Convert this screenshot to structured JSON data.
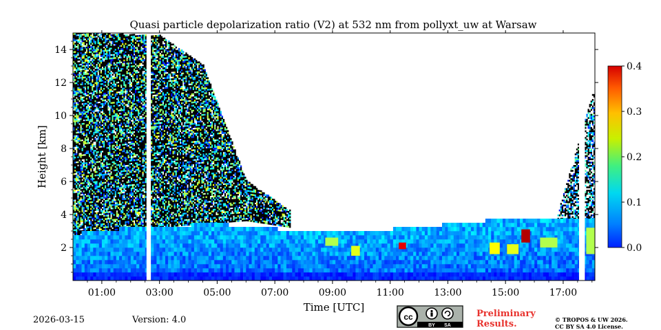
{
  "chart_data": {
    "type": "heatmap",
    "title": "Quasi particle depolarization ratio (V2) at 532 nm from pollyxt_uw at Warsaw",
    "xlabel": "Time [UTC]",
    "ylabel": "Height [km]",
    "xlim": [
      0.0,
      18.1
    ],
    "ylim": [
      0.0,
      15.0
    ],
    "xticks": [
      1,
      3,
      5,
      7,
      9,
      11,
      13,
      15,
      17
    ],
    "xtick_labels": [
      "01:00",
      "03:00",
      "05:00",
      "07:00",
      "09:00",
      "11:00",
      "13:00",
      "15:00",
      "17:00"
    ],
    "yticks": [
      2,
      4,
      6,
      8,
      10,
      12,
      14
    ],
    "ytick_labels": [
      "2",
      "4",
      "6",
      "8",
      "10",
      "12",
      "14"
    ],
    "colorbar": {
      "range": [
        0.0,
        0.4
      ],
      "ticks": [
        0.0,
        0.1,
        0.2,
        0.3,
        0.4
      ],
      "tick_labels": [
        "0.0",
        "0.1",
        "0.2",
        "0.3",
        "0.4"
      ],
      "colormap": "jet"
    },
    "missing_data_gaps_hours": [
      [
        2.55,
        2.7
      ],
      [
        17.55,
        17.75
      ]
    ],
    "boundary_layer_top_km": [
      [
        0.0,
        2.7
      ],
      [
        1.0,
        2.9
      ],
      [
        2.0,
        3.1
      ],
      [
        3.0,
        3.2
      ],
      [
        5.0,
        3.3
      ],
      [
        7.0,
        3.0
      ],
      [
        8.0,
        2.8
      ],
      [
        9.0,
        2.8
      ],
      [
        10.0,
        2.9
      ],
      [
        12.0,
        3.1
      ],
      [
        13.5,
        3.4
      ],
      [
        15.0,
        3.6
      ],
      [
        17.0,
        3.6
      ],
      [
        18.1,
        3.6
      ]
    ],
    "cirrus_layer_km": [
      [
        0.0,
        2.7,
        15.0
      ],
      [
        3.0,
        3.2,
        14.8
      ],
      [
        4.5,
        3.4,
        13.0
      ],
      [
        6.0,
        3.6,
        6.0
      ],
      [
        7.5,
        3.2,
        4.2
      ]
    ],
    "high_depolarization_patches": [
      {
        "t0": 8.75,
        "t1": 9.2,
        "z0": 2.1,
        "z1": 2.6,
        "value": 0.22
      },
      {
        "t0": 9.65,
        "t1": 9.95,
        "z0": 1.5,
        "z1": 2.1,
        "value": 0.24
      },
      {
        "t0": 11.3,
        "t1": 11.55,
        "z0": 1.9,
        "z1": 2.3,
        "value": 0.36
      },
      {
        "t0": 14.45,
        "t1": 14.8,
        "z0": 1.6,
        "z1": 2.3,
        "value": 0.25
      },
      {
        "t0": 15.05,
        "t1": 15.45,
        "z0": 1.6,
        "z1": 2.2,
        "value": 0.24
      },
      {
        "t0": 15.55,
        "t1": 15.85,
        "z0": 2.3,
        "z1": 3.1,
        "value": 0.38
      },
      {
        "t0": 16.2,
        "t1": 16.8,
        "z0": 2.0,
        "z1": 2.6,
        "value": 0.22
      },
      {
        "t0": 17.8,
        "t1": 18.1,
        "z0": 1.6,
        "z1": 3.2,
        "value": 0.22
      }
    ]
  },
  "footer": {
    "date": "2026-03-15",
    "version": "Version: 4.0",
    "preliminary_line1": "Preliminary",
    "preliminary_line2": "Results.",
    "copyright_line1": "© TROPOS & UW 2026.",
    "copyright_line2": "CC BY SA 4.0 License.",
    "license_badge": [
      "cc",
      "BY",
      "SA"
    ]
  }
}
